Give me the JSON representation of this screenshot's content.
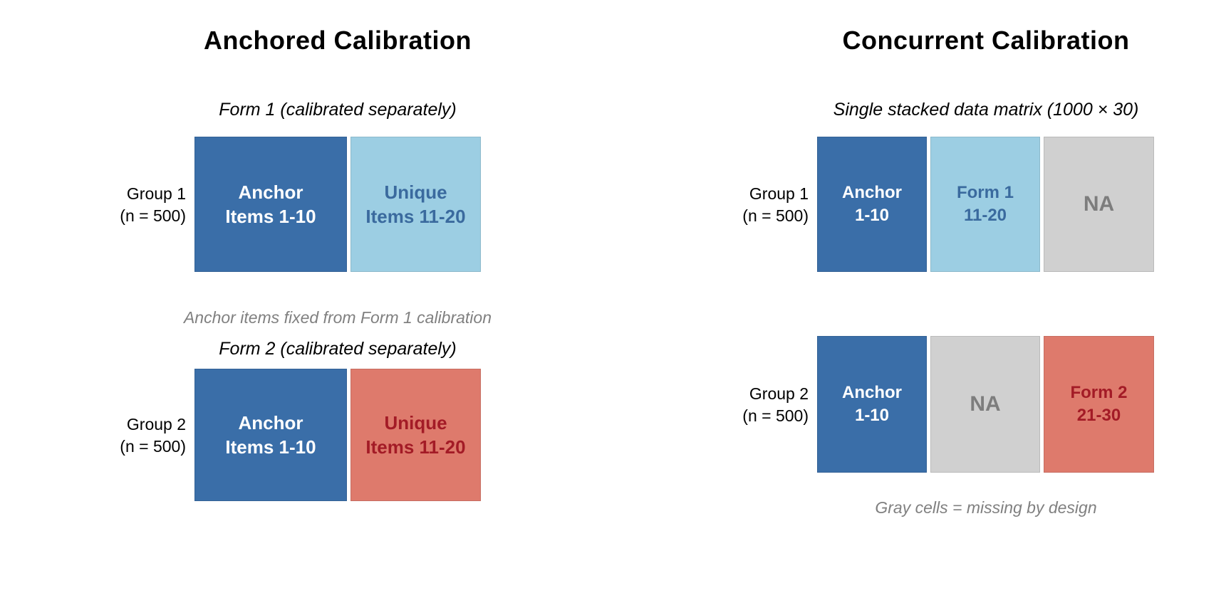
{
  "colors": {
    "anchor_blue": "#3A6EA8",
    "light_blue": "#9CCEE3",
    "salmon_red": "#DE7A6C",
    "missing_gray": "#D0D0D0",
    "anchor_text_white": "#FFFFFF",
    "form1_text_blue": "#3A6A9E",
    "form2_text_dark_red": "#A31B26",
    "na_text_gray": "#7D7D7D",
    "note_text_gray": "#808080",
    "background": "#FFFFFF"
  },
  "left_panel": {
    "title": "Anchored Calibration",
    "form1": {
      "subtitle": "Form 1 (calibrated separately)",
      "group_label": {
        "line1": "Group 1",
        "line2": "(n = 500)"
      },
      "cells": [
        {
          "line1": "Anchor",
          "line2": "Items 1-10"
        },
        {
          "line1": "Unique",
          "line2": "Items 11-20"
        }
      ]
    },
    "note": "Anchor items fixed from Form 1 calibration",
    "form2": {
      "subtitle": "Form 2 (calibrated separately)",
      "group_label": {
        "line1": "Group 2",
        "line2": "(n = 500)"
      },
      "cells": [
        {
          "line1": "Anchor",
          "line2": "Items 1-10"
        },
        {
          "line1": "Unique",
          "line2": "Items 11-20"
        }
      ]
    }
  },
  "right_panel": {
    "title": "Concurrent Calibration",
    "subtitle": "Single stacked data matrix (1000 × 30)",
    "row1": {
      "group_label": {
        "line1": "Group 1",
        "line2": "(n = 500)"
      },
      "cells": [
        {
          "line1": "Anchor",
          "line2": "1-10"
        },
        {
          "line1": "Form 1",
          "line2": "11-20"
        },
        {
          "line1": "NA"
        }
      ]
    },
    "row2": {
      "group_label": {
        "line1": "Group 2",
        "line2": "(n = 500)"
      },
      "cells": [
        {
          "line1": "Anchor",
          "line2": "1-10"
        },
        {
          "line1": "NA"
        },
        {
          "line1": "Form 2",
          "line2": "21-30"
        }
      ]
    },
    "caption": "Gray cells = missing by design"
  }
}
